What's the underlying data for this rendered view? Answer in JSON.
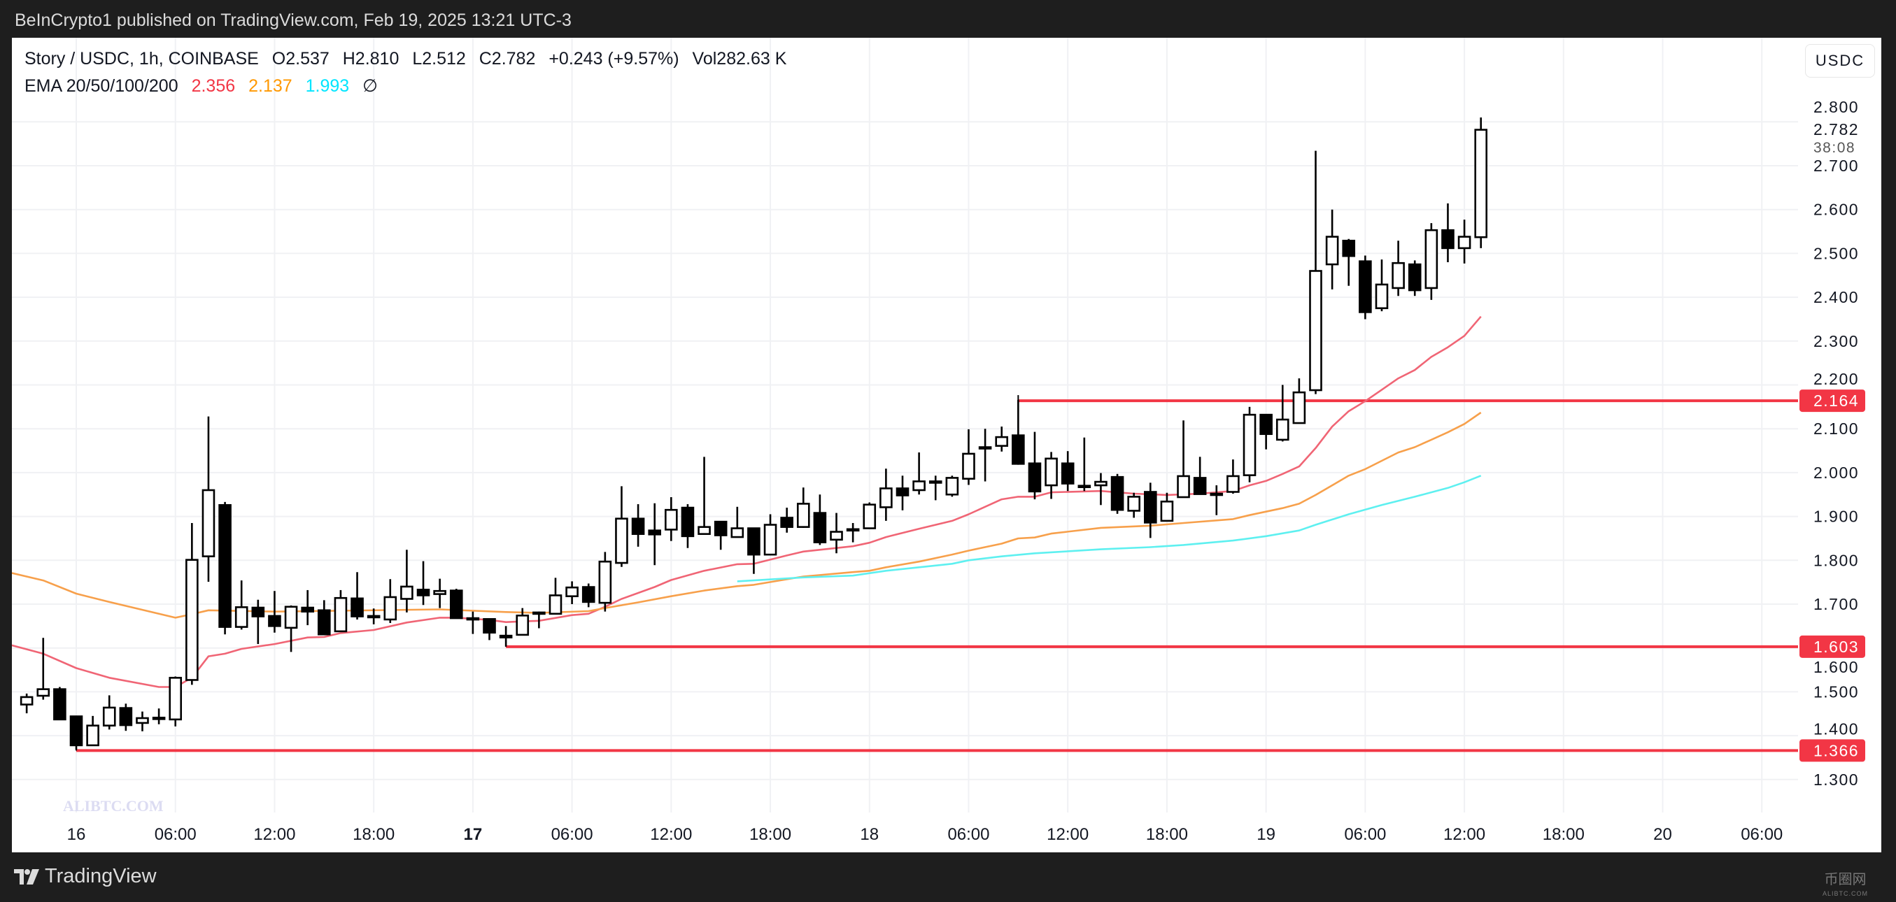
{
  "header": {
    "published": "BeInCrypto1 published on TradingView.com, Feb 19, 2025 13:21 UTC-3"
  },
  "legend": {
    "symbol": "Story / USDC, 1h, COINBASE",
    "open": "O2.537",
    "high": "H2.810",
    "low": "L2.512",
    "close": "C2.782",
    "change": "+0.243 (+9.57%)",
    "volume": "Vol282.63 K",
    "ema_label": "EMA 20/50/100/200",
    "ema20": "2.356",
    "ema50": "2.137",
    "ema100": "1.993",
    "ema200": "∅"
  },
  "currency_button": "USDC",
  "footer": {
    "brand": "TradingView"
  },
  "watermarks": {
    "left": "ALIBTC.COM",
    "right_cn": "币圈网",
    "right_en": "ALIBTC.COM"
  },
  "colors": {
    "up_body": "#ffffff",
    "down_body": "#000000",
    "level": "#f23645",
    "ema20": "#f06575",
    "ema50": "#f7a04b",
    "ema100": "#5ef0f0",
    "ema20_text": "#f23645",
    "ema50_text": "#ff9800",
    "ema100_text": "#00e5ff"
  },
  "chart_data": {
    "type": "candlestick",
    "title": "Story / USDC, 1h, COINBASE",
    "x_unit": "hours since Feb 16 00:00 (UTC-3)",
    "ylabel": "USDC",
    "ylim": [
      1.25,
      2.83
    ],
    "y_ticks": [
      "2.800",
      "2.700",
      "2.600",
      "2.500",
      "2.400",
      "2.300",
      "2.200",
      "2.100",
      "2.000",
      "1.900",
      "1.800",
      "1.700",
      "1.600",
      "1.500",
      "1.400",
      "1.300"
    ],
    "x_ticks": [
      {
        "hour": 0,
        "label": "16",
        "bold": false
      },
      {
        "hour": 6,
        "label": "06:00",
        "bold": false
      },
      {
        "hour": 12,
        "label": "12:00",
        "bold": false
      },
      {
        "hour": 18,
        "label": "18:00",
        "bold": false
      },
      {
        "hour": 24,
        "label": "17",
        "bold": true
      },
      {
        "hour": 30,
        "label": "06:00",
        "bold": false
      },
      {
        "hour": 36,
        "label": "12:00",
        "bold": false
      },
      {
        "hour": 42,
        "label": "18:00",
        "bold": false
      },
      {
        "hour": 48,
        "label": "18",
        "bold": false
      },
      {
        "hour": 54,
        "label": "06:00",
        "bold": false
      },
      {
        "hour": 60,
        "label": "12:00",
        "bold": false
      },
      {
        "hour": 66,
        "label": "18:00",
        "bold": false
      },
      {
        "hour": 72,
        "label": "19",
        "bold": false
      },
      {
        "hour": 78,
        "label": "06:00",
        "bold": false
      },
      {
        "hour": 84,
        "label": "12:00",
        "bold": false
      },
      {
        "hour": 90,
        "label": "18:00",
        "bold": false
      },
      {
        "hour": 96,
        "label": "20",
        "bold": false
      },
      {
        "hour": 102,
        "label": "06:00",
        "bold": false
      }
    ],
    "start_hour": -3,
    "ohlc": [
      [
        1.471,
        1.496,
        1.451,
        1.488
      ],
      [
        1.491,
        1.623,
        1.482,
        1.506
      ],
      [
        1.506,
        1.511,
        1.437,
        1.437
      ],
      [
        1.444,
        1.445,
        1.368,
        1.378
      ],
      [
        1.378,
        1.445,
        1.378,
        1.423
      ],
      [
        1.423,
        1.492,
        1.414,
        1.464
      ],
      [
        1.463,
        1.473,
        1.411,
        1.424
      ],
      [
        1.429,
        1.455,
        1.41,
        1.44
      ],
      [
        1.44,
        1.462,
        1.426,
        1.441
      ],
      [
        1.437,
        1.535,
        1.421,
        1.532
      ],
      [
        1.527,
        1.885,
        1.516,
        1.801
      ],
      [
        1.809,
        2.128,
        1.751,
        1.96
      ],
      [
        1.926,
        1.933,
        1.631,
        1.648
      ],
      [
        1.648,
        1.754,
        1.642,
        1.693
      ],
      [
        1.692,
        1.71,
        1.609,
        1.672
      ],
      [
        1.673,
        1.73,
        1.635,
        1.65
      ],
      [
        1.646,
        1.697,
        1.591,
        1.694
      ],
      [
        1.692,
        1.732,
        1.652,
        1.683
      ],
      [
        1.686,
        1.709,
        1.631,
        1.631
      ],
      [
        1.638,
        1.732,
        1.638,
        1.714
      ],
      [
        1.713,
        1.773,
        1.665,
        1.672
      ],
      [
        1.673,
        1.69,
        1.654,
        1.673
      ],
      [
        1.665,
        1.757,
        1.657,
        1.716
      ],
      [
        1.712,
        1.824,
        1.681,
        1.74
      ],
      [
        1.733,
        1.798,
        1.698,
        1.72
      ],
      [
        1.723,
        1.758,
        1.691,
        1.73
      ],
      [
        1.731,
        1.735,
        1.668,
        1.668
      ],
      [
        1.668,
        1.683,
        1.632,
        1.668
      ],
      [
        1.666,
        1.666,
        1.618,
        1.635
      ],
      [
        1.628,
        1.65,
        1.603,
        1.624
      ],
      [
        1.63,
        1.691,
        1.63,
        1.674
      ],
      [
        1.679,
        1.683,
        1.645,
        1.681
      ],
      [
        1.678,
        1.76,
        1.678,
        1.72
      ],
      [
        1.718,
        1.752,
        1.7,
        1.738
      ],
      [
        1.739,
        1.747,
        1.693,
        1.705
      ],
      [
        1.703,
        1.819,
        1.683,
        1.797
      ],
      [
        1.794,
        1.969,
        1.785,
        1.895
      ],
      [
        1.895,
        1.928,
        1.831,
        1.86
      ],
      [
        1.868,
        1.93,
        1.789,
        1.859
      ],
      [
        1.87,
        1.944,
        1.844,
        1.915
      ],
      [
        1.92,
        1.928,
        1.828,
        1.855
      ],
      [
        1.86,
        2.036,
        1.86,
        1.876
      ],
      [
        1.888,
        1.888,
        1.824,
        1.857
      ],
      [
        1.853,
        1.922,
        1.853,
        1.873
      ],
      [
        1.873,
        1.873,
        1.769,
        1.813
      ],
      [
        1.813,
        1.905,
        1.813,
        1.881
      ],
      [
        1.897,
        1.92,
        1.863,
        1.876
      ],
      [
        1.876,
        1.966,
        1.874,
        1.929
      ],
      [
        1.908,
        1.95,
        1.835,
        1.841
      ],
      [
        1.847,
        1.908,
        1.816,
        1.865
      ],
      [
        1.87,
        1.885,
        1.841,
        1.871
      ],
      [
        1.873,
        1.932,
        1.873,
        1.927
      ],
      [
        1.921,
        2.009,
        1.89,
        1.964
      ],
      [
        1.964,
        1.993,
        1.914,
        1.948
      ],
      [
        1.96,
        2.046,
        1.95,
        1.98
      ],
      [
        1.979,
        1.993,
        1.937,
        1.98
      ],
      [
        1.95,
        1.993,
        1.945,
        1.988
      ],
      [
        1.986,
        2.099,
        1.972,
        2.043
      ],
      [
        2.056,
        2.1,
        1.98,
        2.058
      ],
      [
        2.061,
        2.105,
        2.048,
        2.081
      ],
      [
        2.085,
        2.166,
        2.018,
        2.02
      ],
      [
        2.021,
        2.093,
        1.939,
        1.957
      ],
      [
        1.971,
        2.047,
        1.94,
        2.032
      ],
      [
        2.021,
        2.049,
        1.958,
        1.975
      ],
      [
        1.97,
        2.08,
        1.958,
        1.97
      ],
      [
        1.971,
        1.999,
        1.926,
        1.979
      ],
      [
        1.99,
        1.997,
        1.906,
        1.915
      ],
      [
        1.913,
        1.954,
        1.897,
        1.945
      ],
      [
        1.956,
        1.977,
        1.851,
        1.886
      ],
      [
        1.89,
        1.954,
        1.89,
        1.934
      ],
      [
        1.944,
        2.119,
        1.944,
        1.992
      ],
      [
        1.988,
        2.036,
        1.951,
        1.951
      ],
      [
        1.951,
        1.971,
        1.903,
        1.952
      ],
      [
        1.956,
        2.03,
        1.952,
        1.992
      ],
      [
        1.994,
        2.15,
        1.978,
        2.132
      ],
      [
        2.132,
        2.132,
        2.053,
        2.088
      ],
      [
        2.075,
        2.2,
        2.071,
        2.121
      ],
      [
        2.113,
        2.215,
        2.113,
        2.183
      ],
      [
        2.188,
        2.734,
        2.179,
        2.46
      ],
      [
        2.475,
        2.6,
        2.418,
        2.538
      ],
      [
        2.529,
        2.533,
        2.426,
        2.494
      ],
      [
        2.482,
        2.495,
        2.35,
        2.366
      ],
      [
        2.375,
        2.486,
        2.368,
        2.429
      ],
      [
        2.421,
        2.529,
        2.403,
        2.478
      ],
      [
        2.475,
        2.484,
        2.403,
        2.416
      ],
      [
        2.421,
        2.569,
        2.394,
        2.553
      ],
      [
        2.553,
        2.614,
        2.48,
        2.512
      ],
      [
        2.512,
        2.577,
        2.477,
        2.538
      ],
      [
        2.537,
        2.81,
        2.512,
        2.782
      ]
    ],
    "series": [
      {
        "name": "EMA 20",
        "points": [
          [
            -3.9,
            1.606
          ],
          [
            -2,
            1.587
          ],
          [
            0,
            1.554
          ],
          [
            2,
            1.532
          ],
          [
            5,
            1.511
          ],
          [
            6,
            1.511
          ],
          [
            7,
            1.532
          ],
          [
            8,
            1.581
          ],
          [
            9,
            1.587
          ],
          [
            10,
            1.598
          ],
          [
            12,
            1.609
          ],
          [
            14,
            1.624
          ],
          [
            15,
            1.625
          ],
          [
            16,
            1.634
          ],
          [
            18,
            1.641
          ],
          [
            20,
            1.658
          ],
          [
            22,
            1.669
          ],
          [
            23,
            1.669
          ],
          [
            25,
            1.664
          ],
          [
            26,
            1.659
          ],
          [
            28,
            1.662
          ],
          [
            30,
            1.675
          ],
          [
            31,
            1.678
          ],
          [
            32,
            1.694
          ],
          [
            33,
            1.712
          ],
          [
            35,
            1.739
          ],
          [
            36,
            1.755
          ],
          [
            38,
            1.776
          ],
          [
            40,
            1.791
          ],
          [
            41,
            1.792
          ],
          [
            43,
            1.811
          ],
          [
            44,
            1.82
          ],
          [
            47,
            1.832
          ],
          [
            48,
            1.84
          ],
          [
            49,
            1.853
          ],
          [
            51,
            1.872
          ],
          [
            53,
            1.89
          ],
          [
            54,
            1.905
          ],
          [
            56,
            1.939
          ],
          [
            57,
            1.945
          ],
          [
            58,
            1.945
          ],
          [
            59,
            1.955
          ],
          [
            62,
            1.958
          ],
          [
            64,
            1.952
          ],
          [
            66,
            1.949
          ],
          [
            68,
            1.952
          ],
          [
            70,
            1.958
          ],
          [
            71,
            1.971
          ],
          [
            72,
            1.981
          ],
          [
            73,
            1.997
          ],
          [
            74,
            2.014
          ],
          [
            75,
            2.056
          ],
          [
            76,
            2.105
          ],
          [
            77,
            2.14
          ],
          [
            78,
            2.163
          ],
          [
            79,
            2.189
          ],
          [
            80,
            2.215
          ],
          [
            81,
            2.234
          ],
          [
            82,
            2.264
          ],
          [
            83,
            2.286
          ],
          [
            84,
            2.312
          ],
          [
            85,
            2.356
          ]
        ]
      },
      {
        "name": "EMA 50",
        "points": [
          [
            -3.9,
            1.771
          ],
          [
            -2,
            1.754
          ],
          [
            0,
            1.724
          ],
          [
            2,
            1.705
          ],
          [
            6,
            1.669
          ],
          [
            7,
            1.677
          ],
          [
            8,
            1.686
          ],
          [
            12,
            1.683
          ],
          [
            22,
            1.688
          ],
          [
            26,
            1.682
          ],
          [
            28,
            1.68
          ],
          [
            31,
            1.684
          ],
          [
            32,
            1.691
          ],
          [
            34,
            1.704
          ],
          [
            36,
            1.718
          ],
          [
            38,
            1.731
          ],
          [
            40,
            1.741
          ],
          [
            41,
            1.744
          ],
          [
            44,
            1.763
          ],
          [
            47,
            1.773
          ],
          [
            48,
            1.776
          ],
          [
            49,
            1.784
          ],
          [
            51,
            1.797
          ],
          [
            53,
            1.813
          ],
          [
            54,
            1.822
          ],
          [
            56,
            1.838
          ],
          [
            57,
            1.85
          ],
          [
            58,
            1.852
          ],
          [
            59,
            1.861
          ],
          [
            62,
            1.874
          ],
          [
            65,
            1.879
          ],
          [
            67,
            1.885
          ],
          [
            70,
            1.894
          ],
          [
            71,
            1.903
          ],
          [
            73,
            1.919
          ],
          [
            74,
            1.929
          ],
          [
            75,
            1.949
          ],
          [
            76,
            1.971
          ],
          [
            77,
            1.993
          ],
          [
            78,
            2.008
          ],
          [
            79,
            2.027
          ],
          [
            80,
            2.046
          ],
          [
            81,
            2.058
          ],
          [
            82,
            2.075
          ],
          [
            83,
            2.092
          ],
          [
            84,
            2.111
          ],
          [
            85,
            2.137
          ]
        ]
      },
      {
        "name": "EMA 100",
        "points": [
          [
            40,
            1.752
          ],
          [
            44,
            1.761
          ],
          [
            47,
            1.765
          ],
          [
            49,
            1.776
          ],
          [
            51,
            1.784
          ],
          [
            53,
            1.792
          ],
          [
            54,
            1.8
          ],
          [
            56,
            1.809
          ],
          [
            58,
            1.816
          ],
          [
            62,
            1.825
          ],
          [
            65,
            1.83
          ],
          [
            67,
            1.835
          ],
          [
            70,
            1.845
          ],
          [
            72,
            1.855
          ],
          [
            74,
            1.868
          ],
          [
            75,
            1.881
          ],
          [
            77,
            1.905
          ],
          [
            79,
            1.926
          ],
          [
            81,
            1.945
          ],
          [
            83,
            1.965
          ],
          [
            84,
            1.978
          ],
          [
            85,
            1.993
          ]
        ]
      }
    ],
    "levels": [
      {
        "price": 2.164,
        "label": "2.164",
        "from_hour": 57
      },
      {
        "price": 1.603,
        "label": "1.603",
        "from_hour": 26
      },
      {
        "price": 1.366,
        "label": "1.366",
        "from_hour": 0
      }
    ],
    "last_price": {
      "label": "2.782",
      "countdown": "38:08"
    },
    "grid": true
  }
}
